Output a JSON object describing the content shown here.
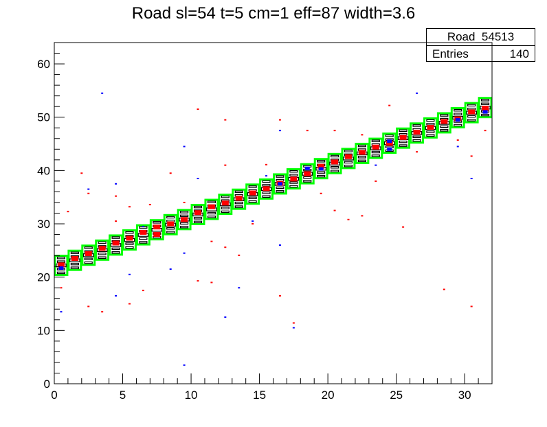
{
  "title": "Road sl=54 t=5 cm=1 eff=87 width=3.6",
  "stats": {
    "name": "Road_54513",
    "entries_label": "Entries",
    "entries_value": "140"
  },
  "colors": {
    "hit_red": "#ff0000",
    "hit_blue": "#0000ff",
    "road_green": "#00ff00",
    "box_black": "#000000"
  },
  "chart_data": {
    "type": "heatmap",
    "title": "Road sl=54 t=5 cm=1 eff=87 width=3.6",
    "xlabel": "",
    "ylabel": "",
    "xlim": [
      0,
      32
    ],
    "ylim": [
      0,
      64
    ],
    "x_ticks": [
      0,
      5,
      10,
      15,
      20,
      25,
      30
    ],
    "y_ticks": [
      0,
      10,
      20,
      30,
      40,
      50,
      60
    ],
    "grid": false,
    "legend": "none",
    "road": {
      "color": "green",
      "center_start": 22.2,
      "slope": 0.955,
      "half_height": 1.8,
      "columns": 32
    },
    "hit_boxes": {
      "color": "black",
      "offsets": [
        -1.4,
        -0.7,
        0.0,
        0.7,
        1.4
      ]
    },
    "red_hits": [
      [
        0.5,
        22.3
      ],
      [
        1.5,
        23.5
      ],
      [
        2.5,
        24.4
      ],
      [
        3.5,
        25.4
      ],
      [
        4.5,
        26.4
      ],
      [
        5.5,
        27.3
      ],
      [
        6.5,
        28.4
      ],
      [
        7.5,
        29.4
      ],
      [
        8.5,
        30.0
      ],
      [
        9.5,
        30.8
      ],
      [
        10.5,
        32.1
      ],
      [
        11.5,
        33.2
      ],
      [
        12.5,
        33.9
      ],
      [
        13.5,
        34.8
      ],
      [
        14.5,
        35.8
      ],
      [
        15.5,
        36.6
      ],
      [
        16.5,
        37.6
      ],
      [
        17.5,
        38.4
      ],
      [
        18.5,
        39.4
      ],
      [
        19.5,
        40.8
      ],
      [
        20.5,
        41.6
      ],
      [
        21.5,
        42.6
      ],
      [
        22.5,
        43.4
      ],
      [
        23.5,
        44.4
      ],
      [
        24.5,
        45.1
      ],
      [
        25.5,
        46.2
      ],
      [
        26.5,
        47.2
      ],
      [
        27.5,
        48.1
      ],
      [
        28.5,
        49.2
      ],
      [
        29.5,
        49.7
      ],
      [
        30.5,
        51.0
      ],
      [
        31.5,
        51.7
      ],
      [
        1.0,
        32.3
      ],
      [
        2.5,
        35.7
      ],
      [
        4.5,
        35.2
      ],
      [
        5.5,
        33.2
      ],
      [
        7.0,
        33.6
      ],
      [
        10.5,
        51.5
      ],
      [
        12.5,
        49.5
      ],
      [
        16.5,
        49.5
      ],
      [
        18.5,
        47.5
      ],
      [
        20.5,
        47.5
      ],
      [
        22.5,
        46.7
      ],
      [
        24.5,
        52.2
      ],
      [
        13.5,
        24.1
      ],
      [
        7.5,
        28.0
      ],
      [
        11.5,
        26.7
      ],
      [
        16.5,
        16.5
      ],
      [
        17.5,
        11.4
      ],
      [
        10.5,
        19.3
      ],
      [
        11.5,
        19.0
      ],
      [
        12.5,
        25.6
      ],
      [
        22.5,
        31.5
      ],
      [
        25.5,
        29.4
      ],
      [
        28.5,
        17.7
      ],
      [
        30.5,
        14.5
      ],
      [
        31.5,
        47.5
      ],
      [
        3.5,
        13.5
      ],
      [
        2.5,
        14.5
      ],
      [
        4.5,
        30.5
      ],
      [
        5.5,
        15.0
      ],
      [
        9.5,
        34.0
      ],
      [
        20.5,
        32.5
      ],
      [
        23.5,
        38.0
      ],
      [
        26.5,
        43.5
      ],
      [
        29.5,
        45.7
      ],
      [
        30.5,
        42.7
      ],
      [
        0.5,
        18.0
      ],
      [
        15.5,
        41.1
      ],
      [
        12.5,
        41.0
      ],
      [
        8.5,
        39.5
      ],
      [
        6.5,
        17.5
      ],
      [
        19.5,
        35.7
      ],
      [
        14.5,
        30.0
      ],
      [
        21.5,
        30.8
      ],
      [
        2.0,
        39.5
      ]
    ],
    "blue_hits": [
      [
        0.5,
        21.7
      ],
      [
        16.5,
        37.5
      ],
      [
        18.5,
        40.4
      ],
      [
        19.5,
        40.3
      ],
      [
        24.5,
        45.5
      ],
      [
        29.5,
        49.5
      ],
      [
        31.5,
        51.0
      ],
      [
        3.5,
        54.5
      ],
      [
        4.5,
        37.5
      ],
      [
        9.5,
        44.5
      ],
      [
        12.5,
        12.5
      ],
      [
        15.5,
        39.0
      ],
      [
        17.5,
        10.5
      ],
      [
        23.5,
        41.0
      ],
      [
        24.5,
        44.0
      ],
      [
        26.5,
        54.5
      ],
      [
        29.5,
        44.5
      ],
      [
        30.5,
        38.5
      ],
      [
        9.5,
        24.5
      ],
      [
        10.5,
        38.5
      ],
      [
        4.5,
        16.5
      ],
      [
        8.5,
        21.5
      ],
      [
        13.5,
        18.0
      ],
      [
        14.5,
        30.5
      ],
      [
        16.5,
        26.0
      ],
      [
        6.5,
        29.5
      ],
      [
        0.5,
        13.5
      ],
      [
        2.5,
        36.5
      ],
      [
        5.5,
        20.5
      ],
      [
        9.5,
        3.5
      ],
      [
        16.5,
        47.5
      ]
    ]
  }
}
